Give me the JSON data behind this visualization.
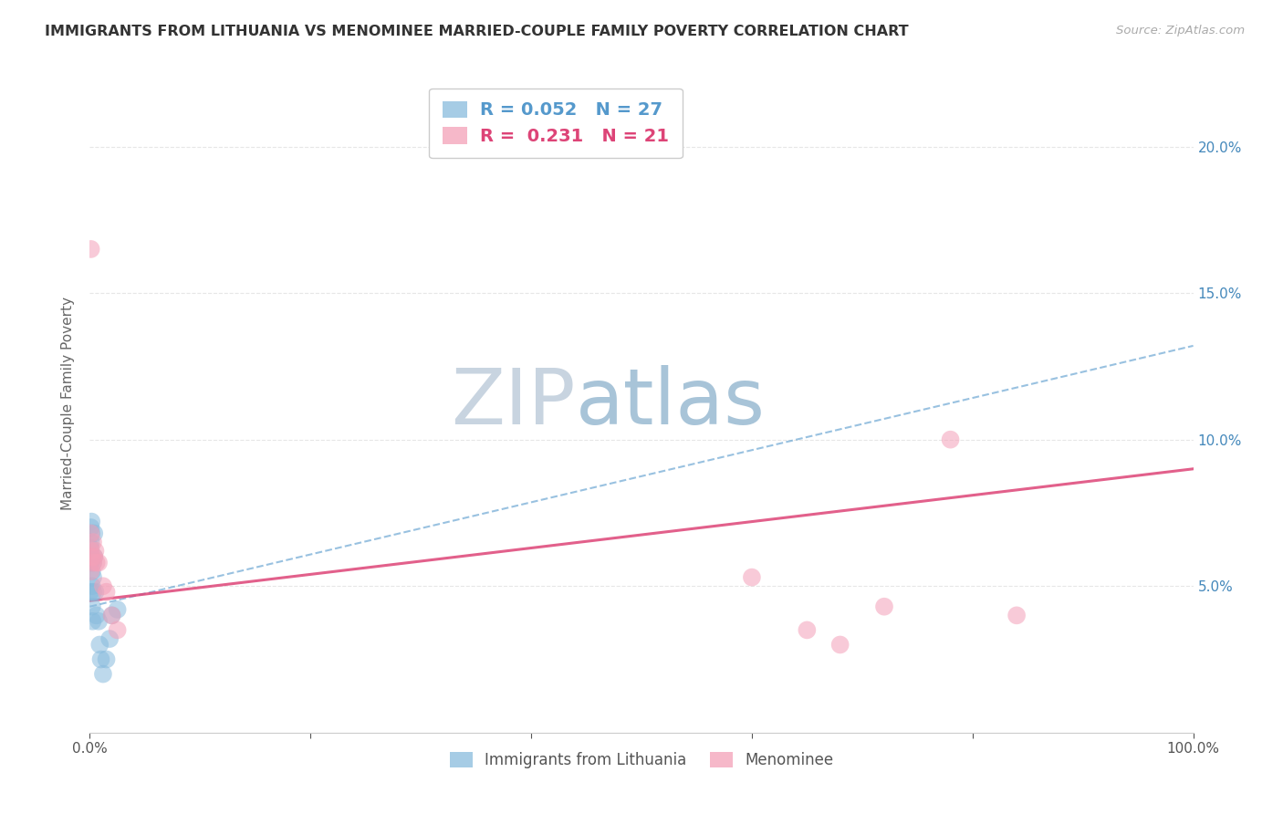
{
  "title": "IMMIGRANTS FROM LITHUANIA VS MENOMINEE MARRIED-COUPLE FAMILY POVERTY CORRELATION CHART",
  "source": "Source: ZipAtlas.com",
  "ylabel": "Married-Couple Family Poverty",
  "blue_label": "Immigrants from Lithuania",
  "pink_label": "Menominee",
  "blue_R": 0.052,
  "blue_N": 27,
  "pink_R": 0.231,
  "pink_N": 21,
  "blue_color": "#88bbdd",
  "pink_color": "#f4a0b8",
  "blue_line_color": "#5599cc",
  "pink_line_color": "#dd4477",
  "xlim": [
    0,
    1.0
  ],
  "ylim": [
    0,
    0.225
  ],
  "blue_line_x": [
    0.0,
    1.0
  ],
  "blue_line_y": [
    0.043,
    0.132
  ],
  "pink_line_x": [
    0.0,
    1.0
  ],
  "pink_line_y": [
    0.045,
    0.09
  ],
  "blue_x": [
    0.0005,
    0.0008,
    0.001,
    0.001,
    0.001,
    0.0012,
    0.0015,
    0.0015,
    0.002,
    0.002,
    0.002,
    0.0025,
    0.003,
    0.003,
    0.003,
    0.004,
    0.004,
    0.005,
    0.006,
    0.008,
    0.009,
    0.01,
    0.012,
    0.015,
    0.018,
    0.02,
    0.025
  ],
  "blue_y": [
    0.048,
    0.063,
    0.07,
    0.065,
    0.058,
    0.06,
    0.072,
    0.068,
    0.055,
    0.05,
    0.043,
    0.038,
    0.058,
    0.053,
    0.048,
    0.068,
    0.06,
    0.048,
    0.04,
    0.038,
    0.03,
    0.025,
    0.02,
    0.025,
    0.032,
    0.04,
    0.042
  ],
  "pink_x": [
    0.0008,
    0.001,
    0.001,
    0.002,
    0.003,
    0.003,
    0.004,
    0.005,
    0.006,
    0.008,
    0.012,
    0.015,
    0.02,
    0.025,
    0.6,
    0.65,
    0.68,
    0.72,
    0.78,
    0.84,
    0.001
  ],
  "pink_y": [
    0.055,
    0.068,
    0.062,
    0.06,
    0.065,
    0.058,
    0.06,
    0.062,
    0.058,
    0.058,
    0.05,
    0.048,
    0.04,
    0.035,
    0.053,
    0.035,
    0.03,
    0.043,
    0.1,
    0.04,
    0.165
  ],
  "watermark_zip": "ZIP",
  "watermark_atlas": "atlas",
  "watermark_color_zip": "#c8d4e0",
  "watermark_color_atlas": "#a8c4d8",
  "background_color": "#ffffff",
  "grid_color": "#e0e0e0",
  "ytick_labels": [
    "",
    "5.0%",
    "10.0%",
    "15.0%",
    "20.0%"
  ],
  "ytick_values": [
    0.0,
    0.05,
    0.1,
    0.15,
    0.2
  ],
  "xtick_labels": [
    "0.0%",
    "",
    "",
    "",
    "",
    "100.0%"
  ],
  "xtick_values": [
    0.0,
    0.2,
    0.4,
    0.6,
    0.8,
    1.0
  ]
}
